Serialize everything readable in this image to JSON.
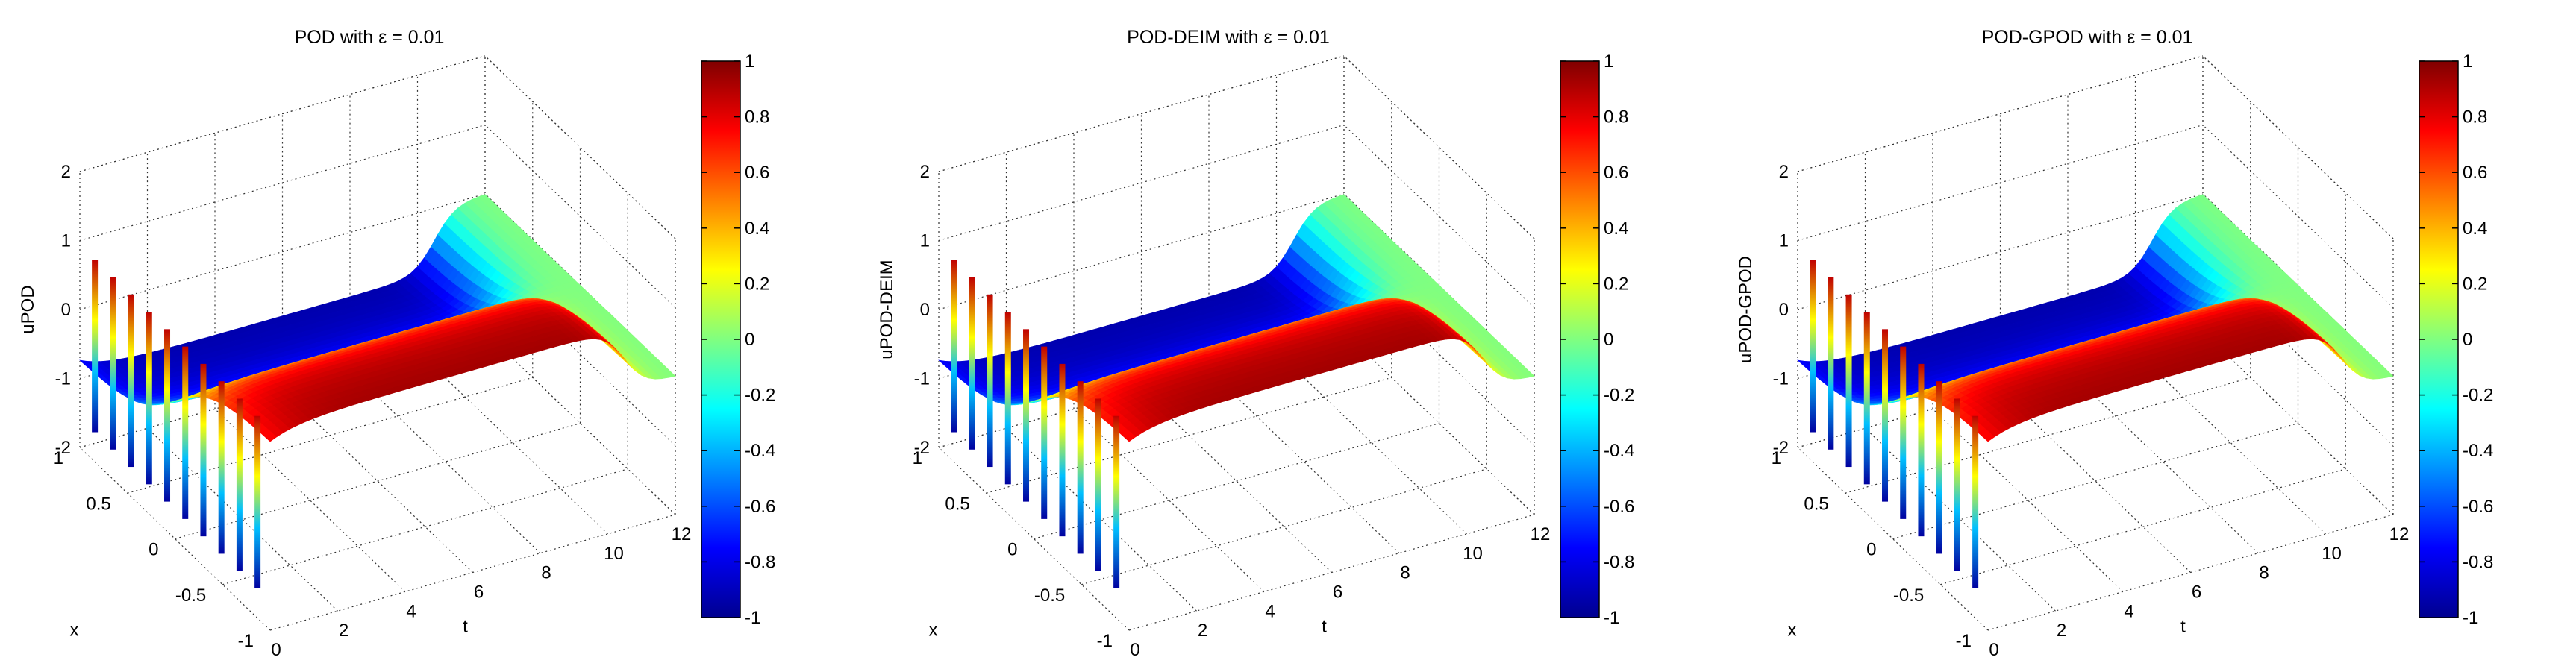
{
  "figure": {
    "panels": [
      {
        "title": "POD with ε = 0.01"
      },
      {
        "title": "POD-DEIM with ε = 0.01"
      },
      {
        "title": "POD-GPOD with ε = 0.01"
      }
    ]
  },
  "colormap": [
    "#00008f",
    "#0000ff",
    "#0080ff",
    "#00ffff",
    "#80ff80",
    "#ffff00",
    "#ff8000",
    "#ff0000",
    "#800000"
  ],
  "chart_data": [
    {
      "type": "surface",
      "title": "POD with ε = 0.01",
      "xlabel": "t",
      "ylabel": "x",
      "zlabel": "uPOD",
      "t_ticks": [
        "0",
        "2",
        "4",
        "6",
        "8",
        "10",
        "12"
      ],
      "x_ticks": [
        "-1",
        "-0.5",
        "0",
        "0.5",
        "1"
      ],
      "z_ticks": [
        "-2",
        "-1",
        "0",
        "1",
        "2"
      ],
      "tlim": [
        0,
        12
      ],
      "xlim": [
        -1,
        1
      ],
      "zlim": [
        -2,
        2
      ],
      "colorbar": {
        "ticks": [
          "1",
          "0.8",
          "0.6",
          "0.4",
          "0.2",
          "0",
          "-0.2",
          "-0.4",
          "-0.6",
          "-0.8",
          "-1"
        ],
        "range": [
          -1,
          1
        ]
      },
      "grid": true
    },
    {
      "type": "surface",
      "title": "POD-DEIM with ε = 0.01",
      "xlabel": "t",
      "ylabel": "x",
      "zlabel": "uPOD-DEIM",
      "t_ticks": [
        "0",
        "2",
        "4",
        "6",
        "8",
        "10",
        "12"
      ],
      "x_ticks": [
        "-1",
        "-0.5",
        "0",
        "0.5",
        "1"
      ],
      "z_ticks": [
        "-2",
        "-1",
        "0",
        "1",
        "2"
      ],
      "tlim": [
        0,
        12
      ],
      "xlim": [
        -1,
        1
      ],
      "zlim": [
        -2,
        2
      ],
      "colorbar": {
        "ticks": [
          "1",
          "0.8",
          "0.6",
          "0.4",
          "0.2",
          "0",
          "-0.2",
          "-0.4",
          "-0.6",
          "-0.8",
          "-1"
        ],
        "range": [
          -1,
          1
        ]
      },
      "grid": true
    },
    {
      "type": "surface",
      "title": "POD-GPOD with ε = 0.01",
      "xlabel": "t",
      "ylabel": "x",
      "zlabel": "uPOD-GPOD",
      "t_ticks": [
        "0",
        "2",
        "4",
        "6",
        "8",
        "10",
        "12"
      ],
      "x_ticks": [
        "-1",
        "-0.5",
        "0",
        "0.5",
        "1"
      ],
      "z_ticks": [
        "-2",
        "-1",
        "0",
        "1",
        "2"
      ],
      "tlim": [
        0,
        12
      ],
      "xlim": [
        -1,
        1
      ],
      "zlim": [
        -2,
        2
      ],
      "colorbar": {
        "ticks": [
          "1",
          "0.8",
          "0.6",
          "0.4",
          "0.2",
          "0",
          "-0.2",
          "-0.4",
          "-0.6",
          "-0.8",
          "-1"
        ],
        "range": [
          -1,
          1
        ]
      },
      "grid": true
    }
  ]
}
